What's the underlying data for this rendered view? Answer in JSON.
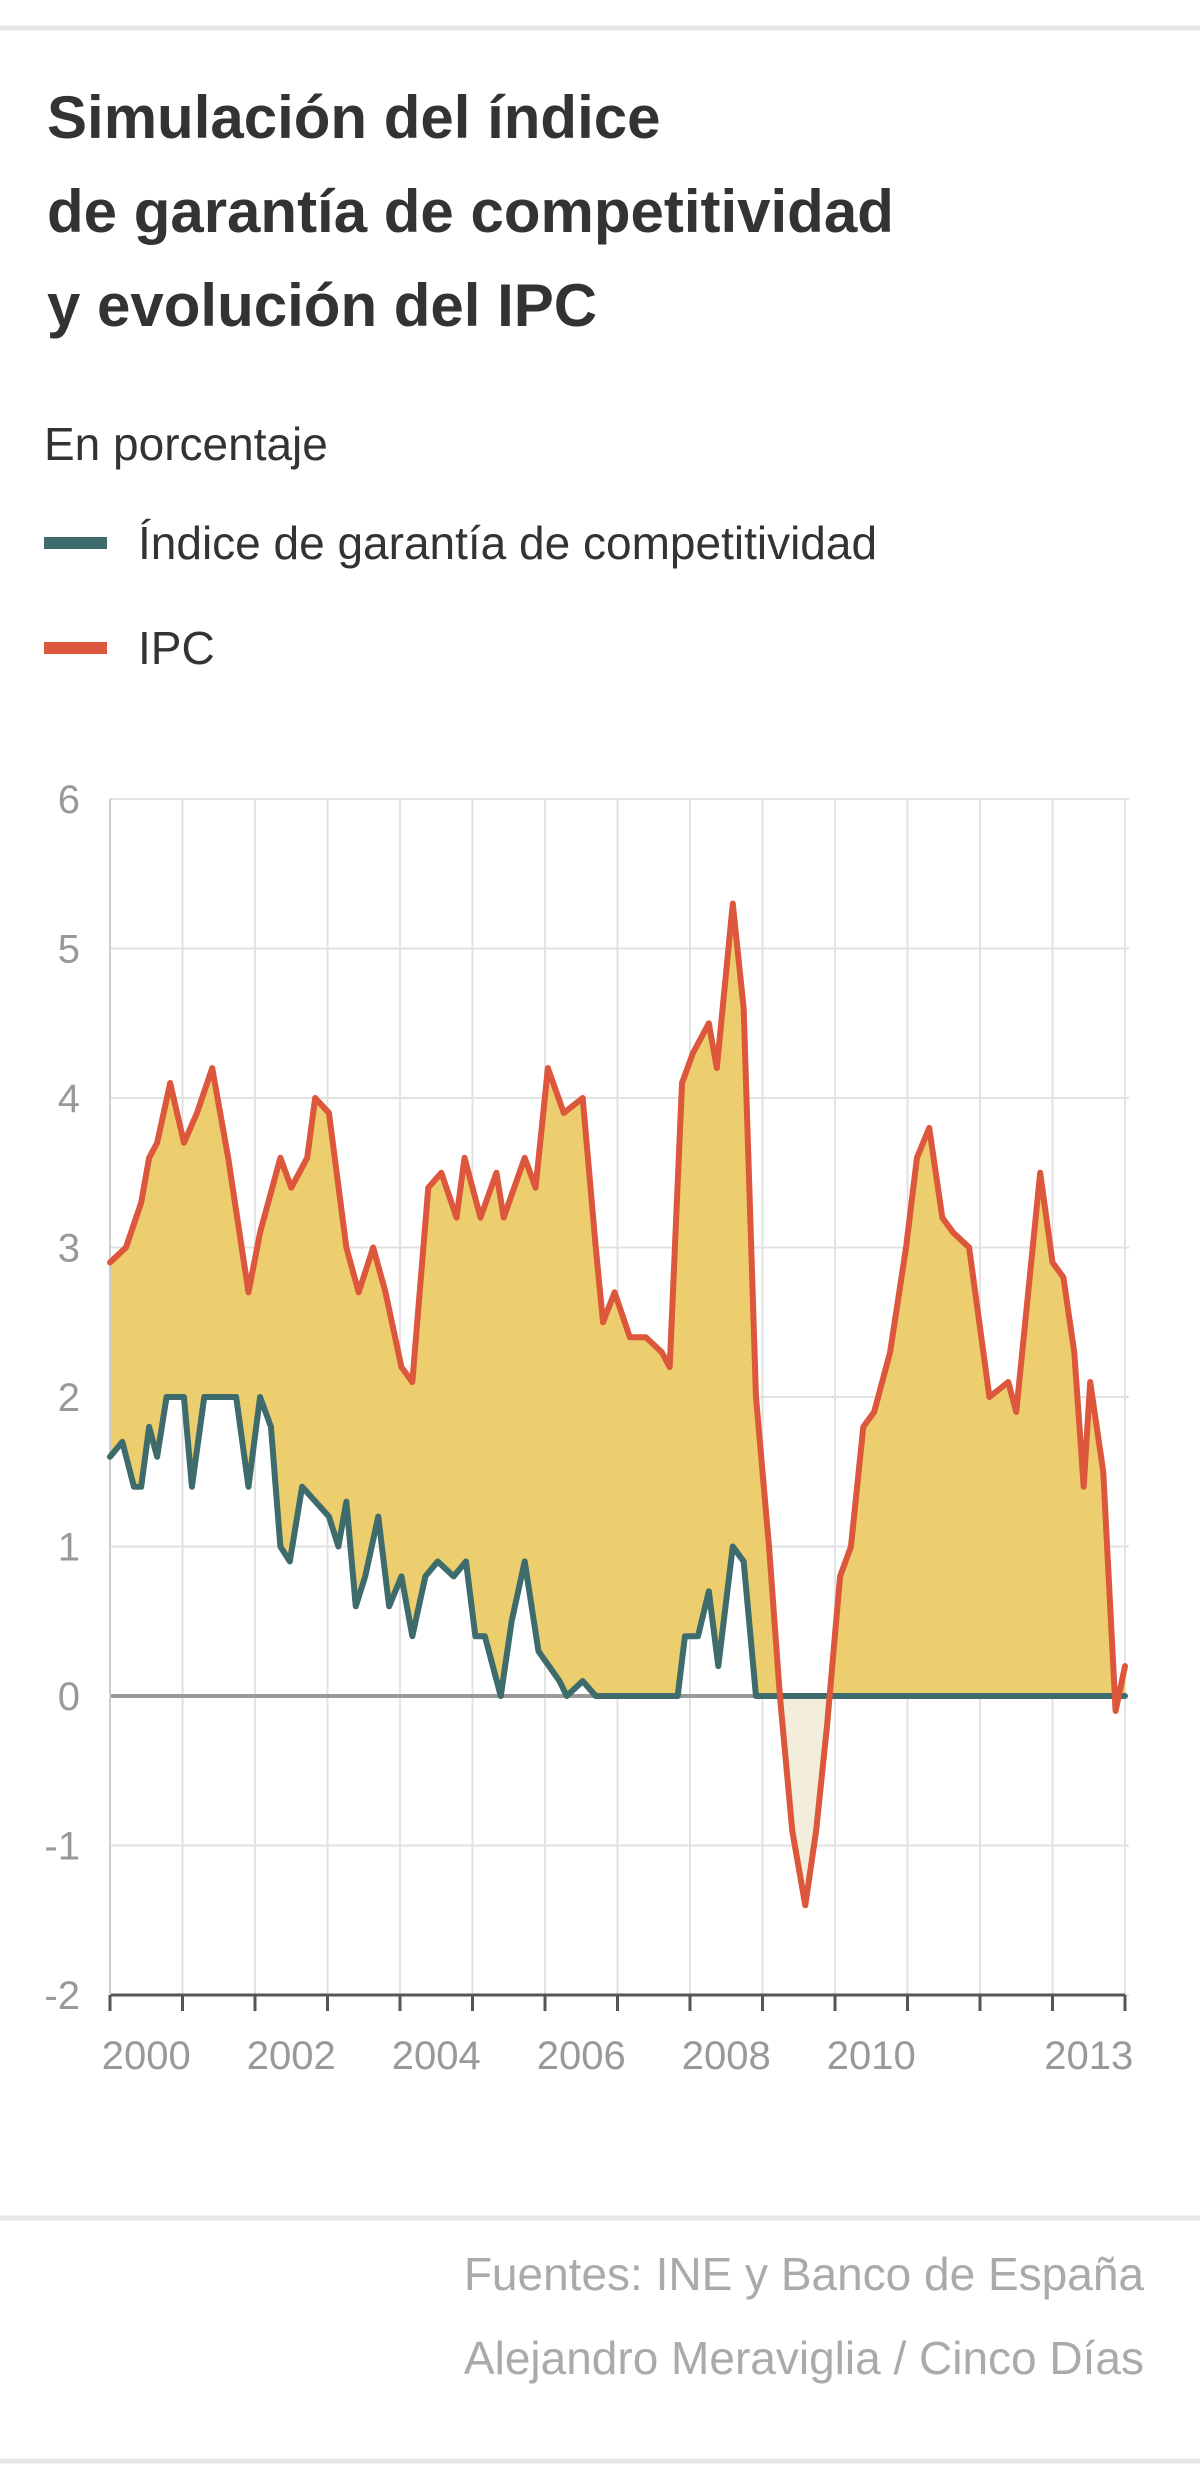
{
  "chart_data": {
    "type": "line",
    "title": [
      "Simulación del índice",
      "de garantía de competitividad",
      "y evolución del IPC"
    ],
    "subtitle": "En porcentaje",
    "series": [
      {
        "name": "Índice de garantía de competitividad",
        "color": "#3e6b6b",
        "x": [
          2000.0,
          2000.17,
          2000.33,
          2000.43,
          2000.54,
          2000.65,
          2000.78,
          2001.02,
          2001.13,
          2001.3,
          2001.74,
          2001.91,
          2002.07,
          2002.22,
          2002.35,
          2002.48,
          2002.65,
          2003.02,
          2003.15,
          2003.26,
          2003.39,
          2003.52,
          2003.7,
          2003.85,
          2004.02,
          2004.17,
          2004.35,
          2004.52,
          2004.74,
          2004.91,
          2005.04,
          2005.17,
          2005.39,
          2005.54,
          2005.72,
          2005.91,
          2006.2,
          2006.3,
          2006.52,
          2006.7,
          2007.83,
          2007.93,
          2008.11,
          2008.26,
          2008.39,
          2008.59,
          2008.74,
          2008.91,
          2014.0
        ],
        "values": [
          1.6,
          1.7,
          1.4,
          1.4,
          1.8,
          1.6,
          2.0,
          2.0,
          1.4,
          2.0,
          2.0,
          1.4,
          2.0,
          1.8,
          1.0,
          0.9,
          1.4,
          1.2,
          1.0,
          1.3,
          0.6,
          0.8,
          1.2,
          0.6,
          0.8,
          0.4,
          0.8,
          0.9,
          0.8,
          0.9,
          0.4,
          0.4,
          0.0,
          0.5,
          0.9,
          0.3,
          0.1,
          0.0,
          0.1,
          0.0,
          0.0,
          0.4,
          0.4,
          0.7,
          0.2,
          1.0,
          0.9,
          0.0,
          0.0
        ]
      },
      {
        "name": "IPC",
        "color": "#dc573b",
        "x": [
          2000.0,
          2000.22,
          2000.43,
          2000.54,
          2000.65,
          2000.83,
          2001.02,
          2001.2,
          2001.41,
          2001.63,
          2001.91,
          2002.07,
          2002.35,
          2002.5,
          2002.72,
          2002.83,
          2003.02,
          2003.26,
          2003.43,
          2003.63,
          2003.8,
          2004.02,
          2004.17,
          2004.39,
          2004.57,
          2004.78,
          2004.89,
          2005.11,
          2005.33,
          2005.43,
          2005.72,
          2005.87,
          2006.04,
          2006.26,
          2006.52,
          2006.7,
          2006.8,
          2006.96,
          2007.17,
          2007.39,
          2007.61,
          2007.72,
          2007.89,
          2008.04,
          2008.26,
          2008.37,
          2008.59,
          2008.74,
          2008.91,
          2009.09,
          2009.24,
          2009.41,
          2009.59,
          2009.74,
          2009.89,
          2010.07,
          2010.22,
          2010.39,
          2010.54,
          2010.76,
          2010.98,
          2011.13,
          2011.3,
          2011.48,
          2011.63,
          2011.85,
          2012.13,
          2012.39,
          2012.5,
          2012.83,
          2013.0,
          2013.15,
          2013.3,
          2013.43,
          2013.52,
          2013.7,
          2013.87,
          2014.0
        ],
        "values": [
          2.9,
          3.0,
          3.3,
          3.6,
          3.7,
          4.1,
          3.7,
          3.9,
          4.2,
          3.6,
          2.7,
          3.1,
          3.6,
          3.4,
          3.6,
          4.0,
          3.9,
          3.0,
          2.7,
          3.0,
          2.7,
          2.2,
          2.1,
          3.4,
          3.5,
          3.2,
          3.6,
          3.2,
          3.5,
          3.2,
          3.6,
          3.4,
          4.2,
          3.9,
          4.0,
          3.0,
          2.5,
          2.7,
          2.4,
          2.4,
          2.3,
          2.2,
          4.1,
          4.3,
          4.5,
          4.2,
          5.3,
          4.6,
          2.0,
          1.0,
          0.0,
          -0.9,
          -1.4,
          -0.9,
          -0.2,
          0.8,
          1.0,
          1.8,
          1.9,
          2.3,
          3.0,
          3.6,
          3.8,
          3.2,
          3.1,
          3.0,
          2.0,
          2.1,
          1.9,
          3.5,
          2.9,
          2.8,
          2.3,
          1.4,
          2.1,
          1.5,
          -0.1,
          0.2
        ]
      }
    ],
    "fill_colors": [
      "#ecce6e",
      "#f2eedb"
    ],
    "xlim": [
      2000,
      2014
    ],
    "xticks": [
      2000,
      2002,
      2004,
      2006,
      2008,
      2010,
      2013
    ],
    "xgrid": [
      2000,
      2001,
      2002,
      2003,
      2004,
      2005,
      2006,
      2007,
      2008,
      2009,
      2010,
      2011,
      2012,
      2013,
      2014
    ],
    "ylim": [
      -2,
      6
    ],
    "yticks": [
      -2,
      -1,
      0,
      1,
      2,
      3,
      4,
      5,
      6
    ],
    "grid": true,
    "source": "Fuentes: INE y Banco de España",
    "credit": "Alejandro Meraviglia / Cinco Días"
  }
}
